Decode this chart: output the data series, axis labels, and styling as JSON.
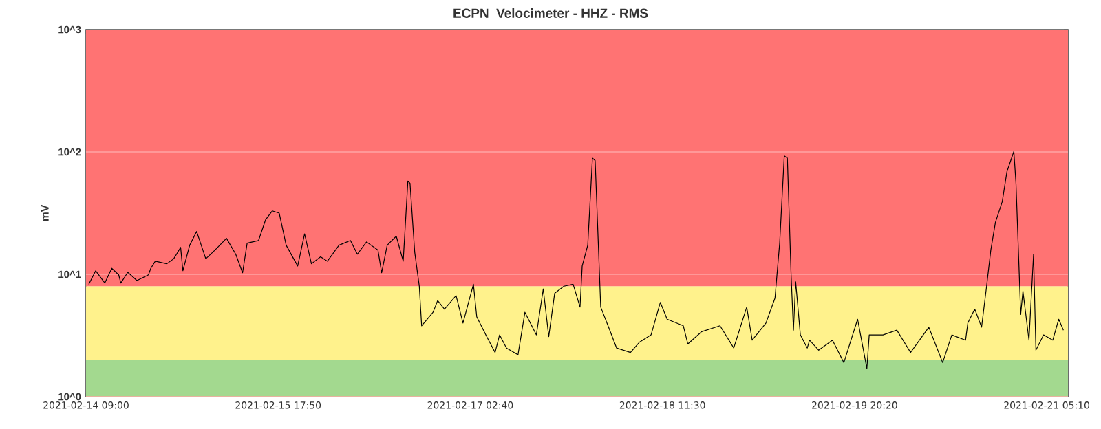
{
  "chart_data": {
    "type": "line",
    "title": "ECPN_Velocimeter - HHZ - RMS",
    "ylabel": "mV",
    "log": "y",
    "grid": "y",
    "marker": "none",
    "line_style": "solid",
    "xlim": [
      "2021-02-14T09:00",
      "2021-02-21T08:48"
    ],
    "xticks": [
      {
        "value": "2021-02-14T09:00",
        "label": "2021-02-14 09:00"
      },
      {
        "value": "2021-02-15T17:50",
        "label": "2021-02-15 17:50"
      },
      {
        "value": "2021-02-17T02:40",
        "label": "2021-02-17 02:40"
      },
      {
        "value": "2021-02-18T11:30",
        "label": "2021-02-18 11:30"
      },
      {
        "value": "2021-02-19T20:20",
        "label": "2021-02-19 20:20"
      },
      {
        "value": "2021-02-21T05:10",
        "label": "2021-02-21 05:10"
      }
    ],
    "ylim": [
      1,
      1000
    ],
    "yticks": [
      {
        "value": 1,
        "label": "10^0"
      },
      {
        "value": 10,
        "label": "10^1"
      },
      {
        "value": 100,
        "label": "10^2"
      },
      {
        "value": 1000,
        "label": "10^3"
      }
    ],
    "bands": [
      {
        "axis": "y",
        "from": 1,
        "to": 2,
        "color": "#a3d98f"
      },
      {
        "axis": "y",
        "from": 2,
        "to": 8,
        "color": "#fff28c"
      },
      {
        "axis": "y",
        "from": 8,
        "to": 1000,
        "color": "#ff7373"
      }
    ],
    "series": [
      {
        "color": "#000000",
        "x": [
          "2021-02-14T09:28",
          "2021-02-14T10:39",
          "2021-02-14T12:13",
          "2021-02-14T13:24",
          "2021-02-14T14:35",
          "2021-02-14T14:57",
          "2021-02-14T16:08",
          "2021-02-14T17:42",
          "2021-02-14T19:40",
          "2021-02-14T20:04",
          "2021-02-14T20:50",
          "2021-02-14T22:49",
          "2021-02-14T23:59",
          "2021-02-15T01:10",
          "2021-02-15T01:33",
          "2021-02-15T02:43",
          "2021-02-15T03:54",
          "2021-02-15T05:28",
          "2021-02-15T07:03",
          "2021-02-15T09:00",
          "2021-02-15T10:35",
          "2021-02-15T11:45",
          "2021-02-15T12:32",
          "2021-02-15T14:29",
          "2021-02-15T15:40",
          "2021-02-15T16:50",
          "2021-02-15T18:01",
          "2021-02-15T19:12",
          "2021-02-15T21:10",
          "2021-02-15T22:21",
          "2021-02-15T23:31",
          "2021-02-16T01:05",
          "2021-02-16T02:15",
          "2021-02-16T04:14",
          "2021-02-16T06:11",
          "2021-02-16T07:22",
          "2021-02-16T08:56",
          "2021-02-16T10:53",
          "2021-02-16T11:31",
          "2021-02-16T12:28",
          "2021-02-16T14:01",
          "2021-02-16T15:12",
          "2021-02-16T16:00",
          "2021-02-16T16:22",
          "2021-02-16T17:10",
          "2021-02-16T17:57",
          "2021-02-16T18:21",
          "2021-02-16T20:18",
          "2021-02-16T21:05",
          "2021-02-16T22:15",
          "2021-02-17T00:14",
          "2021-02-17T01:25",
          "2021-02-17T03:12",
          "2021-02-17T03:46",
          "2021-02-17T05:19",
          "2021-02-17T06:54",
          "2021-02-17T07:40",
          "2021-02-17T08:51",
          "2021-02-17T10:49",
          "2021-02-17T12:00",
          "2021-02-17T13:57",
          "2021-02-17T15:08",
          "2021-02-17T16:04",
          "2021-02-17T17:05",
          "2021-02-17T18:40",
          "2021-02-17T20:14",
          "2021-02-17T21:25",
          "2021-02-17T21:47",
          "2021-02-17T22:44",
          "2021-02-17T23:32",
          "2021-02-18T00:00",
          "2021-02-18T00:57",
          "2021-02-18T02:30",
          "2021-02-18T03:40",
          "2021-02-18T06:02",
          "2021-02-18T07:36",
          "2021-02-18T09:33",
          "2021-02-18T11:08",
          "2021-02-18T12:18",
          "2021-02-18T15:04",
          "2021-02-18T15:50",
          "2021-02-18T18:12",
          "2021-02-18T21:20",
          "2021-02-18T23:41",
          "2021-02-19T01:54",
          "2021-02-19T02:50",
          "2021-02-19T05:11",
          "2021-02-19T06:44",
          "2021-02-19T07:32",
          "2021-02-19T08:19",
          "2021-02-19T08:51",
          "2021-02-19T09:29",
          "2021-02-19T09:53",
          "2021-02-19T10:16",
          "2021-02-19T11:04",
          "2021-02-19T12:15",
          "2021-02-19T12:38",
          "2021-02-19T14:12",
          "2021-02-19T16:33",
          "2021-02-19T18:30",
          "2021-02-19T20:51",
          "2021-02-19T22:26",
          "2021-02-19T22:50",
          "2021-02-20T01:11",
          "2021-02-20T03:33",
          "2021-02-20T05:54",
          "2021-02-20T09:01",
          "2021-02-20T11:23",
          "2021-02-20T12:57",
          "2021-02-20T15:18",
          "2021-02-20T15:41",
          "2021-02-20T16:52",
          "2021-02-20T18:02",
          "2021-02-20T18:50",
          "2021-02-20T19:37",
          "2021-02-20T20:24",
          "2021-02-20T21:34",
          "2021-02-20T22:22",
          "2021-02-20T23:33",
          "2021-02-20T23:55",
          "2021-02-21T00:43",
          "2021-02-21T01:06",
          "2021-02-21T02:08",
          "2021-02-21T02:55",
          "2021-02-21T03:19",
          "2021-02-21T04:38",
          "2021-02-21T06:12",
          "2021-02-21T07:13",
          "2021-02-21T08:01"
        ],
        "values": [
          8.3,
          10.7,
          8.5,
          11.2,
          9.9,
          8.5,
          10.4,
          8.9,
          9.9,
          11.2,
          12.8,
          12.2,
          13.4,
          16.6,
          10.7,
          17.3,
          22.4,
          13.4,
          15.8,
          19.7,
          14.6,
          10.3,
          18.0,
          18.9,
          27.8,
          33.0,
          31.6,
          17.3,
          11.7,
          21.4,
          12.2,
          13.9,
          12.8,
          17.3,
          18.9,
          14.6,
          18.4,
          15.8,
          10.3,
          17.3,
          20.5,
          12.8,
          57.8,
          55.5,
          15.2,
          8.0,
          3.8,
          4.9,
          6.1,
          5.2,
          6.7,
          4.0,
          8.3,
          4.5,
          3.2,
          2.3,
          3.2,
          2.5,
          2.2,
          4.9,
          3.2,
          7.6,
          3.1,
          7.0,
          8.0,
          8.3,
          5.4,
          11.7,
          17.3,
          89,
          85,
          5.4,
          3.5,
          2.5,
          2.3,
          2.8,
          3.2,
          5.9,
          4.3,
          3.8,
          2.7,
          3.4,
          3.8,
          2.5,
          5.4,
          2.9,
          4.0,
          6.4,
          18.0,
          93,
          89,
          9.9,
          3.5,
          8.7,
          3.2,
          2.5,
          2.9,
          2.4,
          2.9,
          1.9,
          4.3,
          1.7,
          3.2,
          3.2,
          3.5,
          2.3,
          3.7,
          1.9,
          3.2,
          2.9,
          4.0,
          5.2,
          3.7,
          7.6,
          15.8,
          26.6,
          39.2,
          69,
          101,
          55,
          4.7,
          7.3,
          2.9,
          14.6,
          2.4,
          3.2,
          2.9,
          4.3,
          3.5
        ]
      }
    ]
  }
}
